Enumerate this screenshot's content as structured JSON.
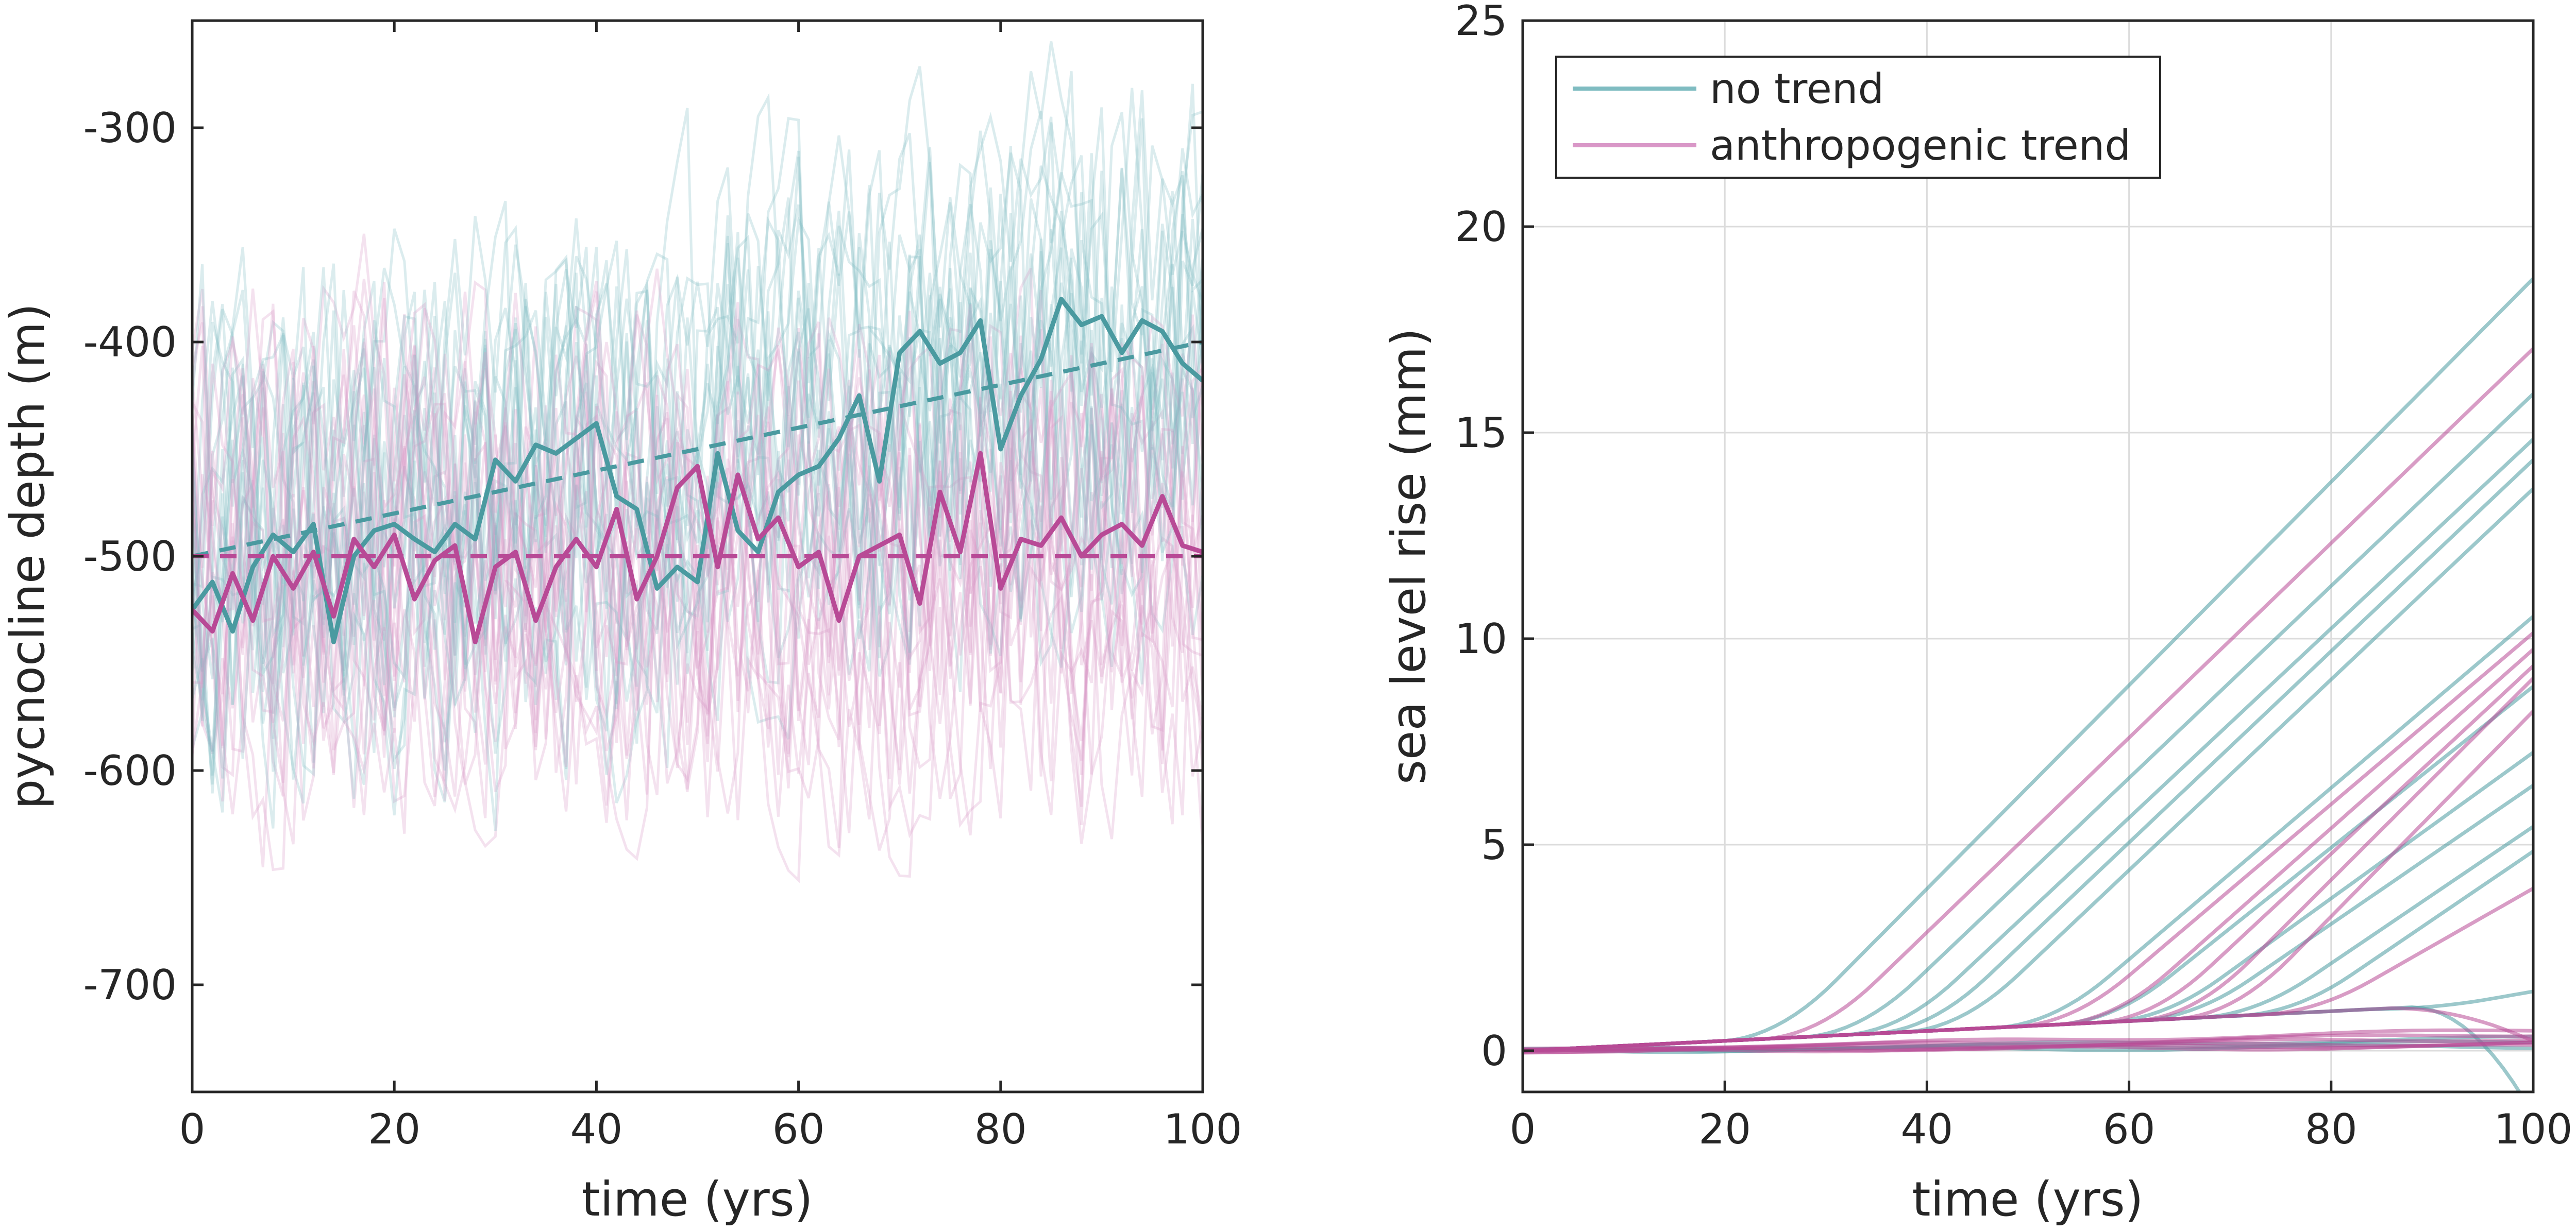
{
  "chart_data": [
    {
      "type": "line",
      "xlabel": "time (yrs)",
      "ylabel": "pycnocline depth (m)",
      "xlim": [
        0,
        100
      ],
      "ylim": [
        -750,
        -250
      ],
      "xticks": [
        0,
        20,
        40,
        60,
        80,
        100
      ],
      "yticks": [
        -700,
        -600,
        -500,
        -400,
        -300
      ],
      "ytick_labels": [
        "-700",
        "-600",
        "-500",
        "-400",
        "-300"
      ],
      "grid": false,
      "legend": null,
      "series": [
        {
          "color": "#4a9aa0",
          "role": "highlighted realization",
          "x": [
            0,
            2,
            4,
            6,
            8,
            10,
            12,
            14,
            16,
            18,
            20,
            22,
            24,
            26,
            28,
            30,
            32,
            34,
            36,
            38,
            40,
            42,
            44,
            46,
            48,
            50,
            52,
            54,
            56,
            58,
            60,
            62,
            64,
            66,
            68,
            70,
            72,
            74,
            76,
            78,
            80,
            82,
            84,
            86,
            88,
            90,
            92,
            94,
            96,
            98,
            100
          ],
          "values": [
            -525,
            -512,
            -535,
            -505,
            -490,
            -498,
            -485,
            -540,
            -500,
            -488,
            -485,
            -492,
            -498,
            -485,
            -492,
            -455,
            -465,
            -448,
            -452,
            -445,
            -438,
            -472,
            -478,
            -515,
            -505,
            -512,
            -452,
            -488,
            -498,
            -470,
            -462,
            -458,
            -445,
            -425,
            -465,
            -405,
            -395,
            -410,
            -405,
            -390,
            -450,
            -425,
            -408,
            -380,
            -392,
            -388,
            -405,
            -390,
            -395,
            -410,
            -418
          ]
        },
        {
          "color": "#b84a96",
          "role": "highlighted realization",
          "x": [
            0,
            2,
            4,
            6,
            8,
            10,
            12,
            14,
            16,
            18,
            20,
            22,
            24,
            26,
            28,
            30,
            32,
            34,
            36,
            38,
            40,
            42,
            44,
            46,
            48,
            50,
            52,
            54,
            56,
            58,
            60,
            62,
            64,
            66,
            68,
            70,
            72,
            74,
            76,
            78,
            80,
            82,
            84,
            86,
            88,
            90,
            92,
            94,
            96,
            98,
            100
          ],
          "values": [
            -525,
            -535,
            -508,
            -530,
            -500,
            -515,
            -498,
            -528,
            -492,
            -505,
            -490,
            -520,
            -502,
            -495,
            -540,
            -505,
            -498,
            -530,
            -505,
            -492,
            -505,
            -478,
            -520,
            -500,
            -468,
            -458,
            -505,
            -462,
            -492,
            -482,
            -505,
            -498,
            -530,
            -500,
            -495,
            -490,
            -522,
            -470,
            -498,
            -452,
            -515,
            -492,
            -495,
            -482,
            -500,
            -490,
            -485,
            -495,
            -472,
            -495,
            -498
          ]
        },
        {
          "color": "#4a9aa0",
          "role": "linear trend (dashed)",
          "x": [
            0,
            100
          ],
          "values": [
            -500,
            -400
          ]
        },
        {
          "color": "#b84a96",
          "role": "constant (dashed)",
          "x": [
            0,
            100
          ],
          "values": [
            -500,
            -500
          ]
        }
      ]
    },
    {
      "type": "line",
      "xlabel": "time (yrs)",
      "ylabel": "sea level rise (mm)",
      "xlim": [
        0,
        100
      ],
      "ylim": [
        -1,
        25
      ],
      "xticks": [
        0,
        20,
        40,
        60,
        80,
        100
      ],
      "yticks": [
        0,
        5,
        10,
        15,
        20,
        25
      ],
      "grid": true,
      "legend": {
        "placement": "top-left",
        "entries": [
          {
            "label": "no trend",
            "color": "#7fbcc1"
          },
          {
            "label": "anthropogenic trend",
            "color": "#d997c7"
          }
        ]
      },
      "series_groups": [
        {
          "legend_label": "no trend",
          "color": "#4a9aa0",
          "curves": [
            {
              "onset": 19,
              "end_value": 20.9
            },
            {
              "onset": 27,
              "end_value": 18.1
            },
            {
              "onset": 31,
              "end_value": 17.0
            },
            {
              "onset": 34,
              "end_value": 16.5
            },
            {
              "onset": 37,
              "end_value": 15.8
            },
            {
              "onset": 46,
              "end_value": 12.7
            },
            {
              "onset": 52,
              "end_value": 11.0
            },
            {
              "onset": 57,
              "end_value": 9.4
            },
            {
              "onset": 60,
              "end_value": 8.6
            },
            {
              "onset": 66,
              "end_value": 7.6
            },
            {
              "onset": 70,
              "end_value": 7.0
            },
            {
              "onset": 84,
              "end_value": 3.6
            },
            {
              "onset": 88,
              "end_value": 0.6
            },
            {
              "onset": null,
              "end_value": 0.3
            },
            {
              "onset": null,
              "end_value": 0.2
            },
            {
              "onset": null,
              "end_value": 0.1
            }
          ]
        },
        {
          "legend_label": "anthropogenic trend",
          "color": "#b84a96",
          "curves": [
            {
              "onset": 23,
              "end_value": 19.2
            },
            {
              "onset": 48,
              "end_value": 12.3
            },
            {
              "onset": 52,
              "end_value": 11.9
            },
            {
              "onset": 56,
              "end_value": 11.5
            },
            {
              "onset": 60,
              "end_value": 11.2
            },
            {
              "onset": 64,
              "end_value": 10.4
            },
            {
              "onset": 72,
              "end_value": 6.1
            },
            {
              "onset": 86,
              "end_value": 2.4
            },
            {
              "onset": null,
              "end_value": 0.5
            },
            {
              "onset": null,
              "end_value": 0.4
            },
            {
              "onset": null,
              "end_value": 0.3
            },
            {
              "onset": null,
              "end_value": 0.2
            },
            {
              "onset": null,
              "end_value": 0.15
            },
            {
              "onset": null,
              "end_value": 0.1
            }
          ]
        }
      ]
    }
  ],
  "colors": {
    "no_trend_dark": "#4a9aa0",
    "no_trend_light": "#7fbcc1",
    "trend_dark": "#b84a96",
    "trend_light": "#d997c7",
    "axis": "#262626",
    "grid": "#dcdcdc"
  }
}
